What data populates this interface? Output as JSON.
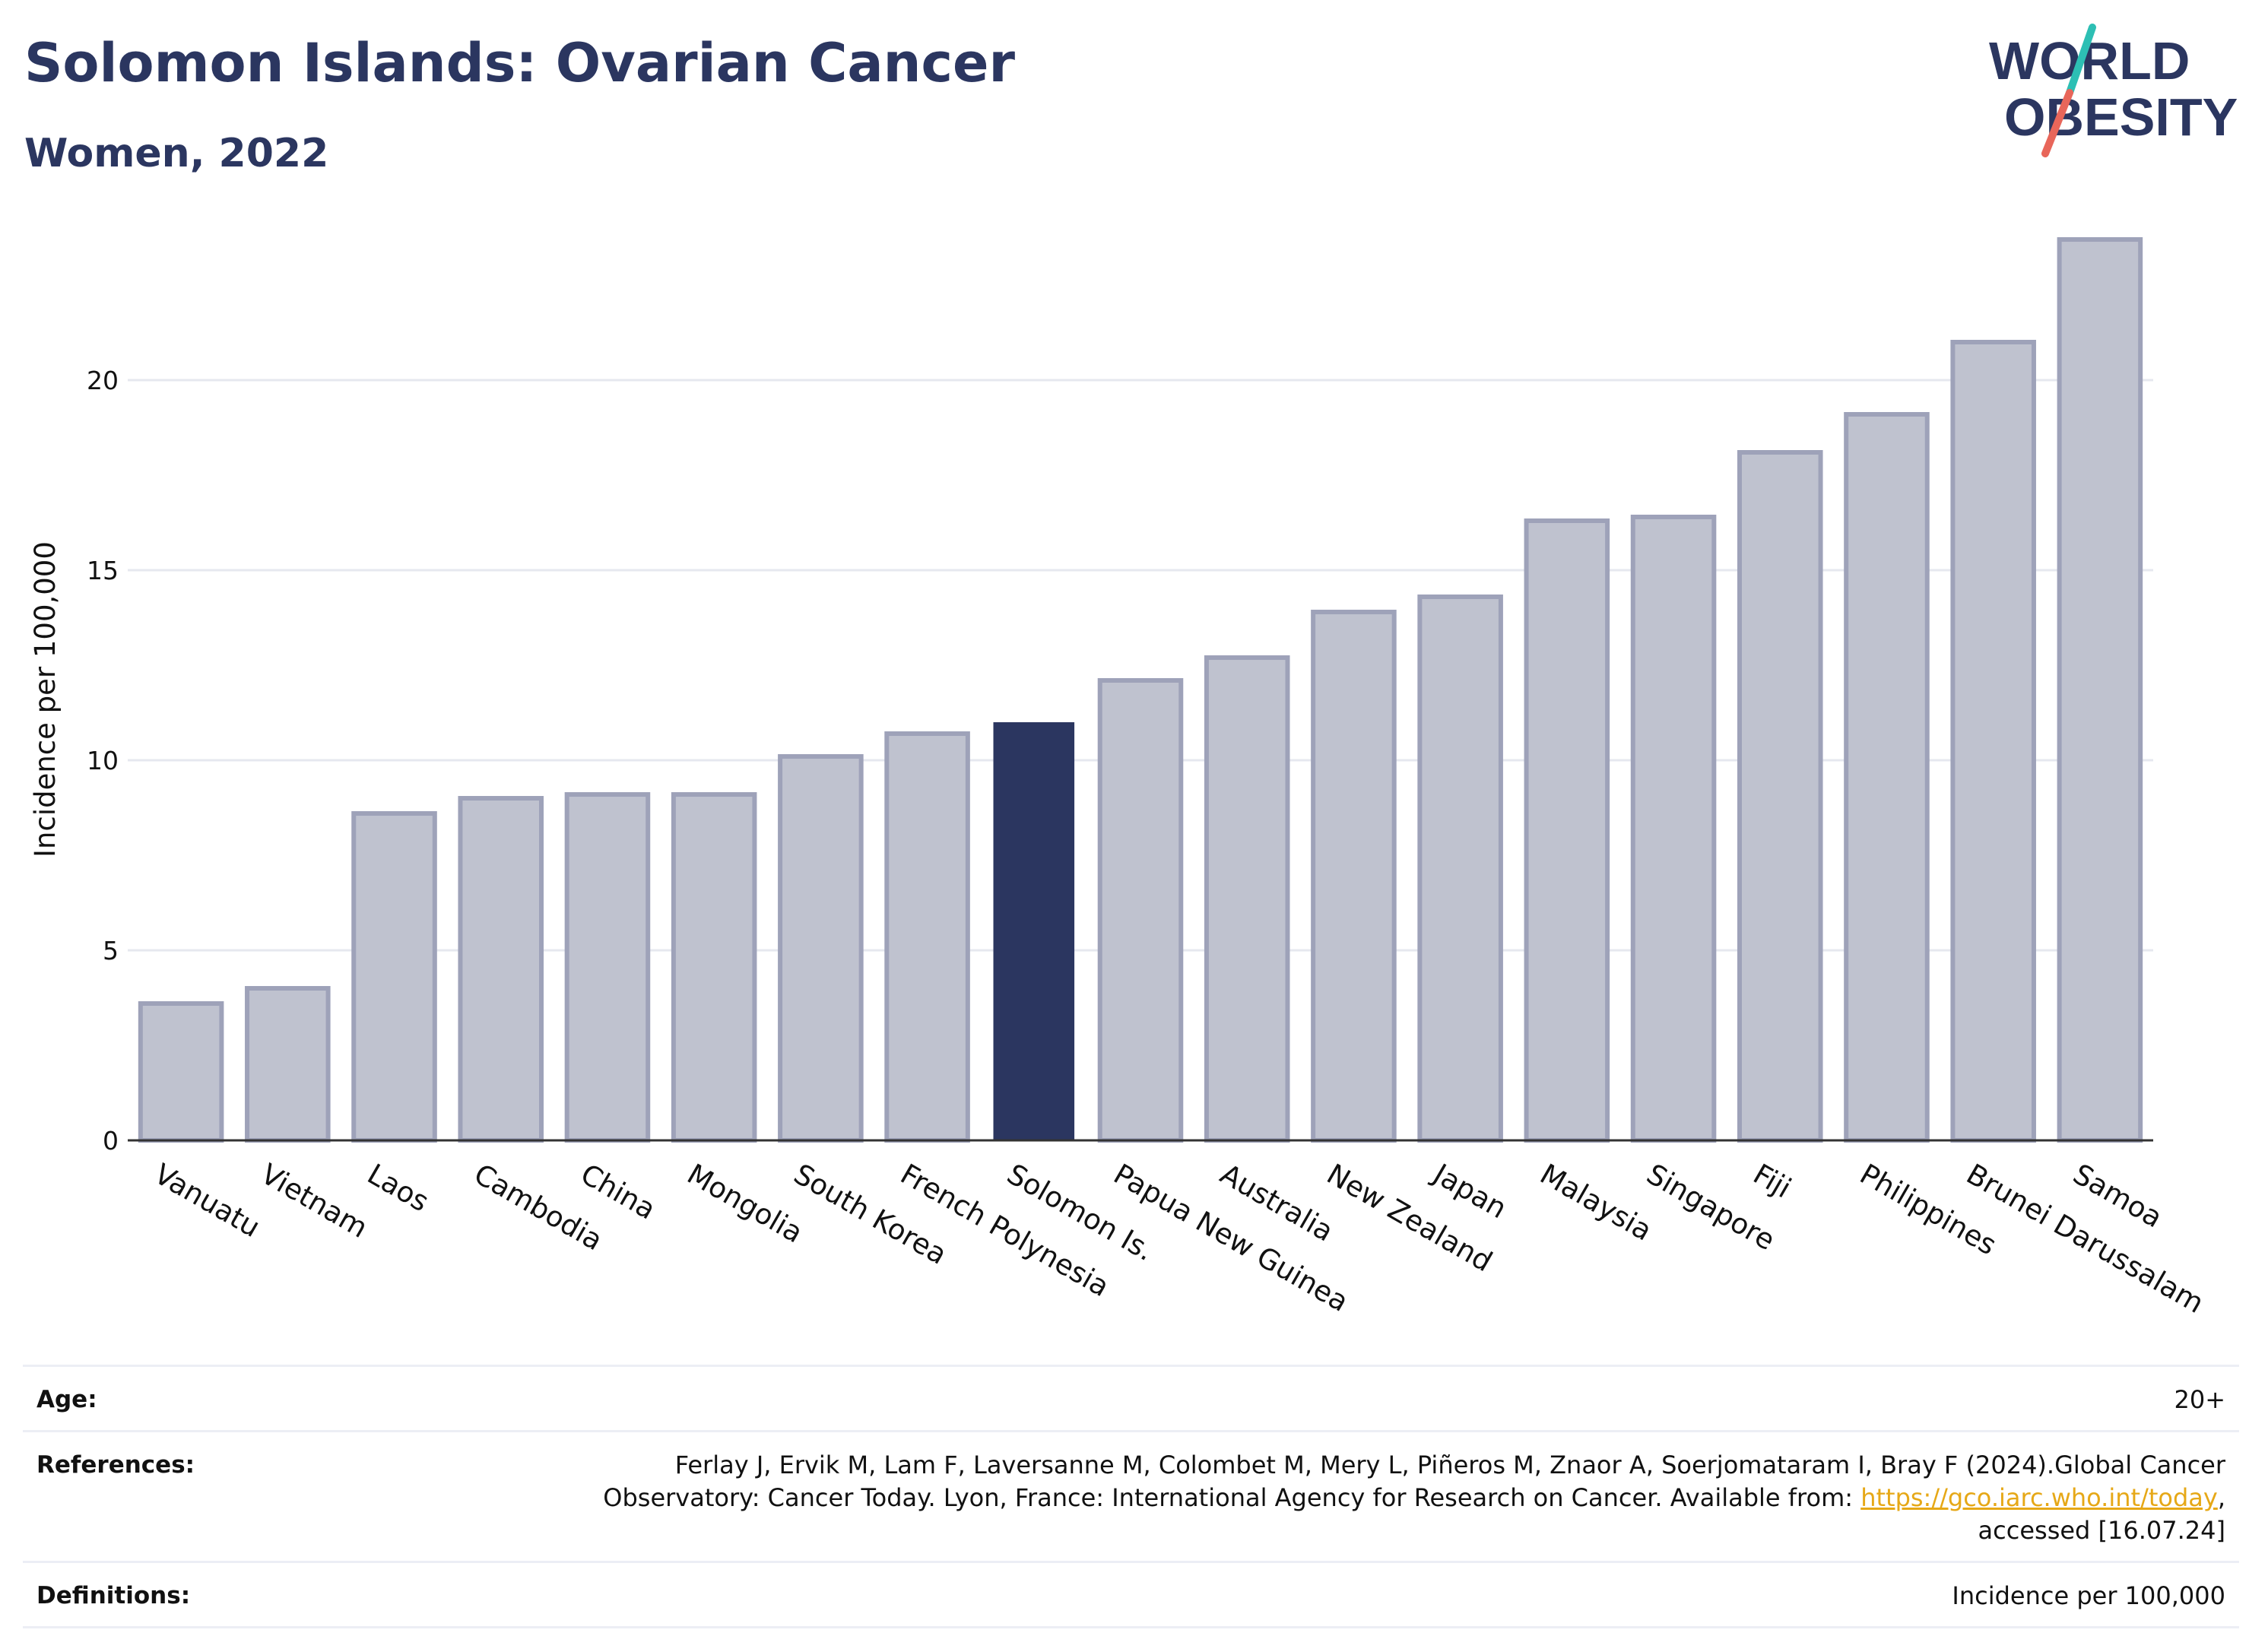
{
  "header": {
    "title": "Solomon Islands: Ovarian Cancer",
    "subtitle": "Women, 2022"
  },
  "logo": {
    "line1": "WORLD",
    "line2": "OBESITY",
    "slash_colors": [
      "#2dbfb4",
      "#e8665a"
    ],
    "text_color": "#2b3660"
  },
  "colors": {
    "bar_default_fill": "#bfc2cf",
    "bar_default_stroke": "#9ea2b9",
    "bar_highlight": "#2b3660",
    "grid": "#e6e8ef"
  },
  "chart_data": {
    "type": "bar",
    "title": "Solomon Islands: Ovarian Cancer",
    "subtitle": "Women, 2022",
    "xlabel": "",
    "ylabel": "Incidence per 100,000",
    "ylim": [
      0,
      24
    ],
    "yticks": [
      0,
      5,
      10,
      15,
      20
    ],
    "grid": true,
    "highlight": "Solomon Is.",
    "categories": [
      "Vanuatu",
      "Vietnam",
      "Laos",
      "Cambodia",
      "China",
      "Mongolia",
      "South Korea",
      "French Polynesia",
      "Solomon Is.",
      "Papua New Guinea",
      "Australia",
      "New Zealand",
      "Japan",
      "Malaysia",
      "Singapore",
      "Fiji",
      "Philippines",
      "Brunei Darussalam",
      "Samoa"
    ],
    "values": [
      3.6,
      4.0,
      8.6,
      9.0,
      9.1,
      9.1,
      10.1,
      10.7,
      11.0,
      12.1,
      12.7,
      13.9,
      14.3,
      16.3,
      16.4,
      18.1,
      19.1,
      21.0,
      23.7
    ]
  },
  "footer": {
    "age_label": "Age:",
    "age_value": "20+",
    "references_label": "References:",
    "references_text": "Ferlay J, Ervik M, Lam F, Laversanne M, Colombet M, Mery L, Piñeros M, Znaor A, Soerjomataram I, Bray F (2024).Global Cancer Observatory: Cancer Today. Lyon, France: International Agency for Research on Cancer. Available from: ",
    "references_link": "https://gco.iarc.who.int/today",
    "references_suffix": ", accessed [16.07.24]",
    "definitions_label": "Definitions:",
    "definitions_value": "Incidence per 100,000"
  }
}
